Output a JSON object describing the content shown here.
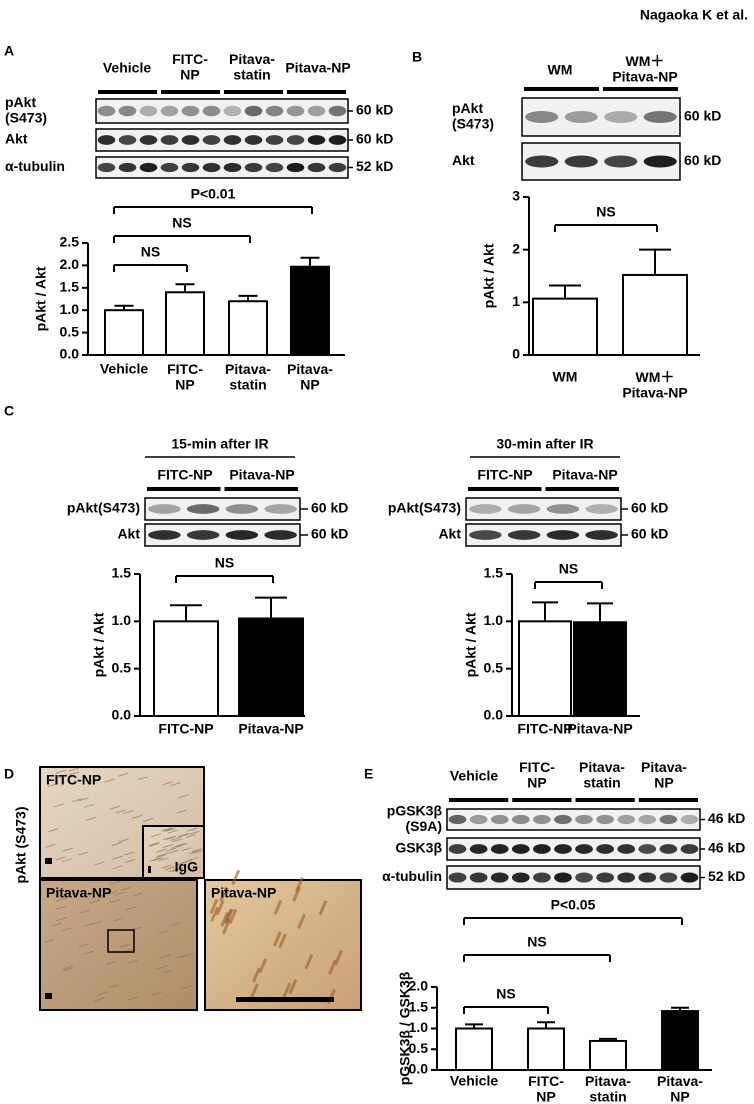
{
  "header": {
    "author": "Nagaoka K et al."
  },
  "panels": {
    "A": {
      "letter": "A",
      "blot": {
        "groups": [
          "Vehicle",
          "FITC-\nNP",
          "Pitava-\nstatin",
          "Pitava-NP"
        ],
        "rows": [
          {
            "label": "pAkt\n(S473)",
            "size": "60 kD"
          },
          {
            "label": "Akt",
            "size": "60 kD"
          },
          {
            "label": "α-tubulin",
            "size": "52 kD"
          }
        ]
      }
    },
    "B": {
      "letter": "B",
      "blot": {
        "groups": [
          "WM",
          "WM＋\nPitava-NP"
        ],
        "rows": [
          {
            "label": "pAkt\n(S473)",
            "size": "60 kD"
          },
          {
            "label": "Akt",
            "size": "60 kD"
          }
        ]
      }
    },
    "C": {
      "letter": "C",
      "blots": [
        {
          "title": "15-min after IR",
          "groups": [
            "FITC-NP",
            "Pitava-NP"
          ],
          "rows": [
            {
              "label": "pAkt(S473)",
              "size": "60 kD"
            },
            {
              "label": "Akt",
              "size": "60 kD"
            }
          ]
        },
        {
          "title": "30-min after IR",
          "groups": [
            "FITC-NP",
            "Pitava-NP"
          ],
          "rows": [
            {
              "label": "pAkt(S473)",
              "size": "60 kD"
            },
            {
              "label": "Akt",
              "size": "60 kD"
            }
          ]
        }
      ]
    },
    "D": {
      "letter": "D",
      "ylabel": "pAkt (S473)",
      "images": [
        "FITC-NP",
        "IgG",
        "Pitava-NP",
        "Pitava-NP"
      ]
    },
    "E": {
      "letter": "E",
      "blot": {
        "groups": [
          "Vehicle",
          "FITC-\nNP",
          "Pitava-\nstatin",
          "Pitava-\nNP"
        ],
        "rows": [
          {
            "label": "pGSK3β\n(S9A)",
            "size": "46 kD"
          },
          {
            "label": "GSK3β",
            "size": "46 kD"
          },
          {
            "label": "α-tubulin",
            "size": "52 kD"
          }
        ]
      }
    }
  },
  "chart_data": [
    {
      "type": "bar",
      "ylabel": "pAkt / Akt",
      "categories": [
        "Vehicle",
        "FITC-\nNP",
        "Pitava-\nstatin",
        "Pitava-\nNP"
      ],
      "values": [
        1.0,
        1.4,
        1.2,
        1.97
      ],
      "errors": [
        0.1,
        0.18,
        0.12,
        0.2
      ],
      "colors": [
        "#ffffff",
        "#ffffff",
        "#ffffff",
        "#000000"
      ],
      "ylim": [
        0,
        2.5
      ],
      "yticks": [
        {
          "value": 0,
          "label": "0.0"
        },
        0.5,
        {
          "value": 1,
          "label": "1.0"
        },
        1.5,
        {
          "value": 2,
          "label": "2.0"
        },
        2.5
      ],
      "brackets": [
        {
          "from": 0,
          "to": 1,
          "label": "NS"
        },
        {
          "from": 0,
          "to": 2,
          "label": "NS"
        },
        {
          "from": 0,
          "to": 3,
          "label": "P<0.01"
        }
      ]
    },
    {
      "type": "bar",
      "ylabel": "pAkt / Akt",
      "categories": [
        "WM",
        "WM＋\nPitava-NP"
      ],
      "values": [
        1.07,
        1.52
      ],
      "errors": [
        0.25,
        0.48
      ],
      "colors": [
        "#ffffff",
        "#ffffff"
      ],
      "ylim": [
        0,
        3
      ],
      "yticks": [
        0,
        1,
        2,
        3
      ],
      "brackets": [
        {
          "from": 0,
          "to": 1,
          "label": "NS"
        }
      ]
    },
    {
      "type": "bar",
      "ylabel": "pAkt / Akt",
      "categories": [
        "FITC-NP",
        "Pitava-NP"
      ],
      "values": [
        1.0,
        1.03
      ],
      "errors": [
        0.17,
        0.22
      ],
      "colors": [
        "#ffffff",
        "#000000"
      ],
      "ylim": [
        0,
        1.5
      ],
      "yticks": [
        {
          "value": 0,
          "label": "0.0"
        },
        0.5,
        {
          "value": 1,
          "label": "1.0"
        },
        1.5
      ],
      "brackets": [
        {
          "from": 0,
          "to": 1,
          "label": "NS"
        }
      ]
    },
    {
      "type": "bar",
      "ylabel": "pAkt / Akt",
      "categories": [
        "FITC-NP",
        "Pitava-NP"
      ],
      "values": [
        1.0,
        0.99
      ],
      "errors": [
        0.2,
        0.2
      ],
      "colors": [
        "#ffffff",
        "#000000"
      ],
      "ylim": [
        0,
        1.5
      ],
      "yticks": [
        {
          "value": 0,
          "label": "0.0"
        },
        0.5,
        {
          "value": 1,
          "label": "1.0"
        },
        1.5
      ],
      "brackets": [
        {
          "from": 0,
          "to": 1,
          "label": "NS"
        }
      ]
    },
    {
      "type": "bar",
      "ylabel": "pGSK3β / GSK3β",
      "categories": [
        "Vehicle",
        "FITC-\nNP",
        "Pitava-\nstatin",
        "Pitava-\nNP"
      ],
      "values": [
        1.0,
        1.0,
        0.7,
        1.42
      ],
      "errors": [
        0.1,
        0.15,
        0.05,
        0.08
      ],
      "colors": [
        "#ffffff",
        "#ffffff",
        "#ffffff",
        "#000000"
      ],
      "ylim": [
        0,
        2
      ],
      "yticks": [
        {
          "value": 0,
          "label": "0.0"
        },
        0.5,
        {
          "value": 1,
          "label": "1.0"
        },
        1.5,
        {
          "value": 2,
          "label": "2.0"
        }
      ],
      "brackets": [
        {
          "from": 0,
          "to": 1,
          "label": "NS"
        },
        {
          "from": 0,
          "to": 2,
          "label": "NS"
        },
        {
          "from": 0,
          "to": 3,
          "label": "P<0.05"
        }
      ]
    }
  ]
}
